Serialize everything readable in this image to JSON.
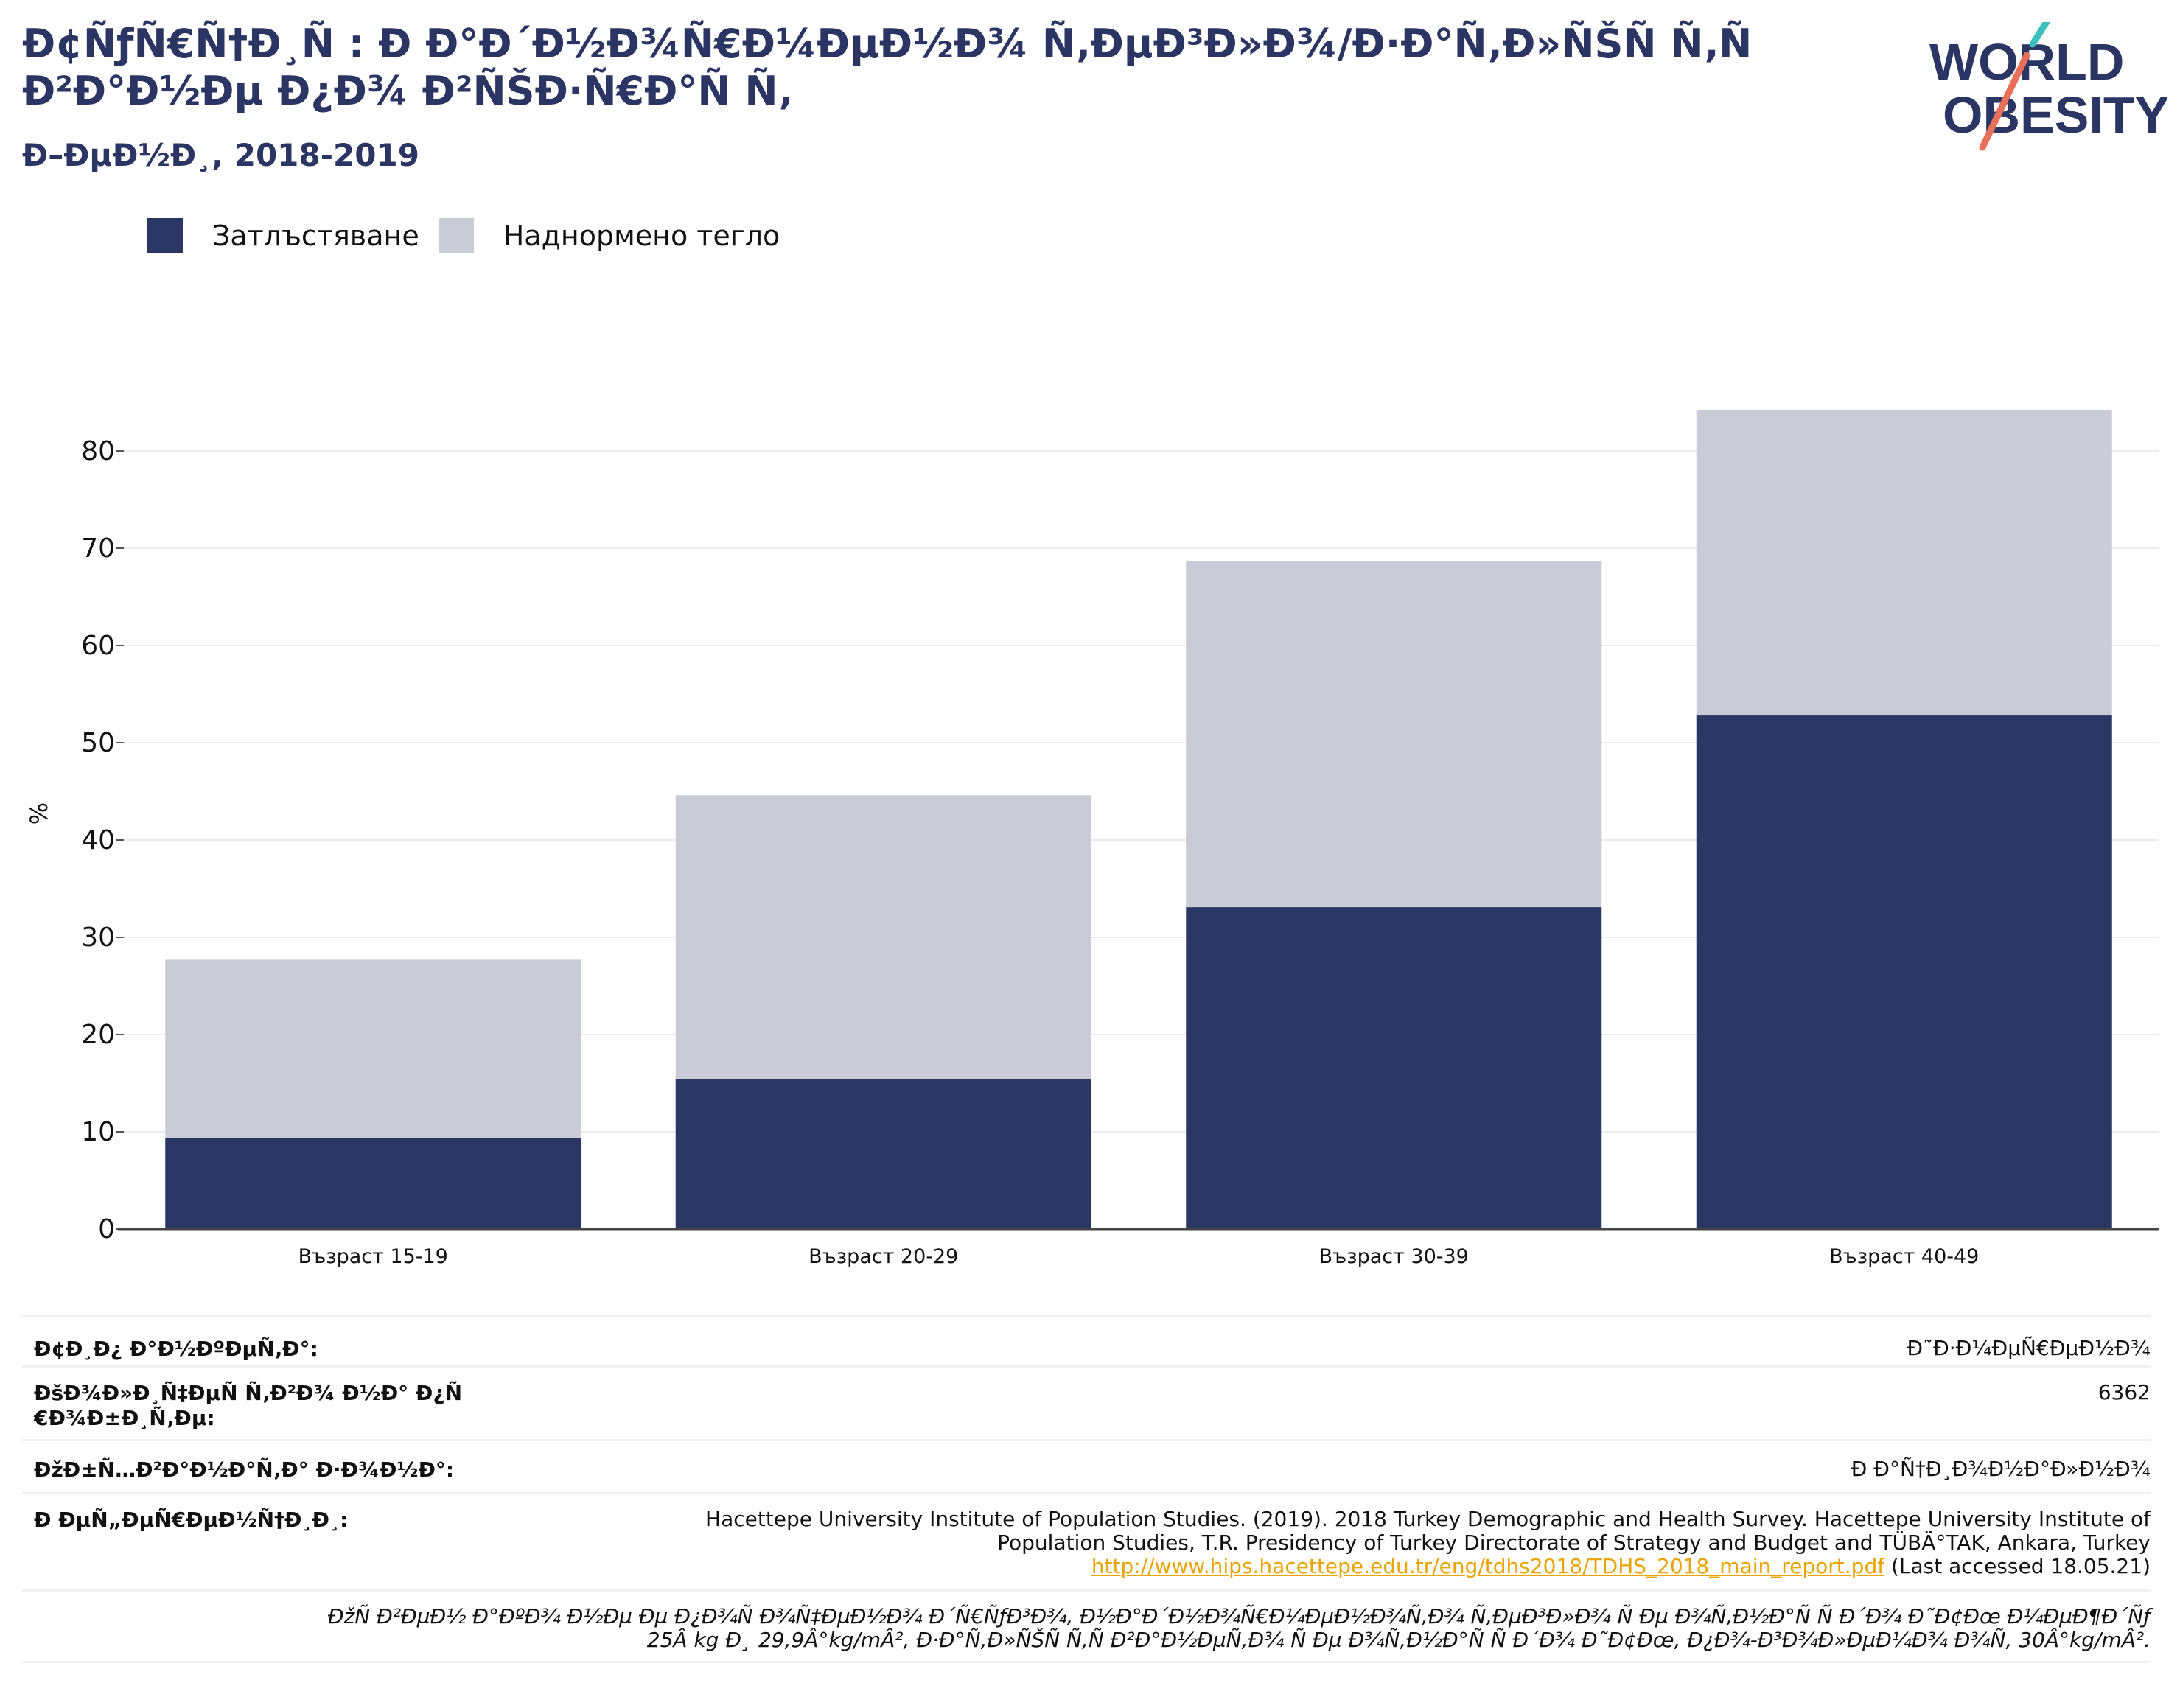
{
  "header": {
    "title": "Ð¢ÑƒÑ€Ñ†Ð¸Ñ : Ð Ð°Ð´Ð½Ð¾Ñ€Ð¼ÐµÐ½Ð¾ Ñ‚ÐµÐ³Ð»Ð¾/Ð·Ð°Ñ‚Ð»ÑŠÑ Ñ‚Ñ Ð²Ð°Ð½Ðµ Ð¿Ð¾ Ð²ÑŠÐ·Ñ€Ð°Ñ Ñ‚",
    "subtitle": "Ð–ÐµÐ½Ð¸, 2018-2019"
  },
  "logo": {
    "line1": "WORLD",
    "line2": "OBESITY"
  },
  "colors": {
    "obesity": "#2a3663",
    "overweight": "#cacbd7",
    "title": "#2a3563",
    "link": "#e8a400",
    "logo_teal": "#3dbfbf",
    "logo_coral": "#e8705a"
  },
  "chart_data": {
    "type": "bar",
    "stacked": true,
    "categories": [
      "Възраст 15-19",
      "Възраст 20-29",
      "Възраст 30-39",
      "Възраст 40-49"
    ],
    "series": [
      {
        "name": "Затлъстяване",
        "values": [
          9.4,
          15.4,
          33.1,
          52.8
        ]
      },
      {
        "name": "Наднормено тегло",
        "values": [
          18.3,
          29.2,
          35.6,
          31.4
        ]
      }
    ],
    "ylabel": "%",
    "ylim": [
      0,
      85
    ],
    "yticks": [
      0,
      10,
      20,
      30,
      40,
      50,
      60,
      70,
      80
    ],
    "grid": true,
    "legend_position": "top-left"
  },
  "table": {
    "rows": [
      {
        "label": "Ð¢Ð¸Ð¿ Ð°Ð½ÐºÐµÑ‚Ð°:",
        "value": "Ð˜Ð·Ð¼ÐµÑ€ÐµÐ½Ð¾"
      },
      {
        "label": "ÐšÐ¾Ð»Ð¸Ñ‡ÐµÑ Ñ‚Ð²Ð¾ Ð½Ð° Ð¿Ñ€Ð¾Ð±Ð¸Ñ‚Ðµ:",
        "value": "6362"
      },
      {
        "label": "ÐžÐ±Ñ…Ð²Ð°Ð½Ð°Ñ‚Ð° Ð·Ð¾Ð½Ð°:",
        "value": "Ð Ð°Ñ†Ð¸Ð¾Ð½Ð°Ð»Ð½Ð¾"
      }
    ],
    "reference": {
      "label": "Ð ÐµÑ„ÐµÑ€ÐµÐ½Ñ†Ð¸Ð¸:",
      "line1": "Hacettepe University Institute of Population Studies. (2019). 2018 Turkey Demographic and Health Survey. Hacettepe University Institute of",
      "line2": "Population Studies, T.R. Presidency of Turkey Directorate of Strategy and Budget and TÜBÄ°TAK, Ankara, Turkey",
      "link": "http://www.hips.hacettepe.edu.tr/eng/tdhs2018/TDHS_2018_main_report.pdf",
      "accessed": " (Last accessed 18.05.21)"
    },
    "note": {
      "line1": "ÐžÑ Ð²ÐµÐ½ Ð°ÐºÐ¾ Ð½Ðµ Ðµ Ð¿Ð¾Ñ Ð¾Ñ‡ÐµÐ½Ð¾ Ð´Ñ€ÑƒÐ³Ð¾, Ð½Ð°Ð´Ð½Ð¾Ñ€Ð¼ÐµÐ½Ð¾Ñ‚Ð¾ Ñ‚ÐµÐ³Ð»Ð¾ Ñ Ðµ Ð¾Ñ‚Ð½Ð°Ñ Ñ  Ð´Ð¾ Ð˜Ð¢Ðœ Ð¼ÐµÐ¶Ð´Ñƒ",
      "line2": "25Â kg Ð¸ 29,9Â°kg/mÂ², Ð·Ð°Ñ‚Ð»ÑŠÑ Ñ‚Ñ Ð²Ð°Ð½ÐµÑ‚Ð¾ Ñ Ðµ Ð¾Ñ‚Ð½Ð°Ñ Ñ  Ð´Ð¾ Ð˜Ð¢Ðœ, Ð¿Ð¾-Ð³Ð¾Ð»ÐµÐ¼Ð¾ Ð¾Ñ‚ 30Â°kg/mÂ²."
    }
  }
}
